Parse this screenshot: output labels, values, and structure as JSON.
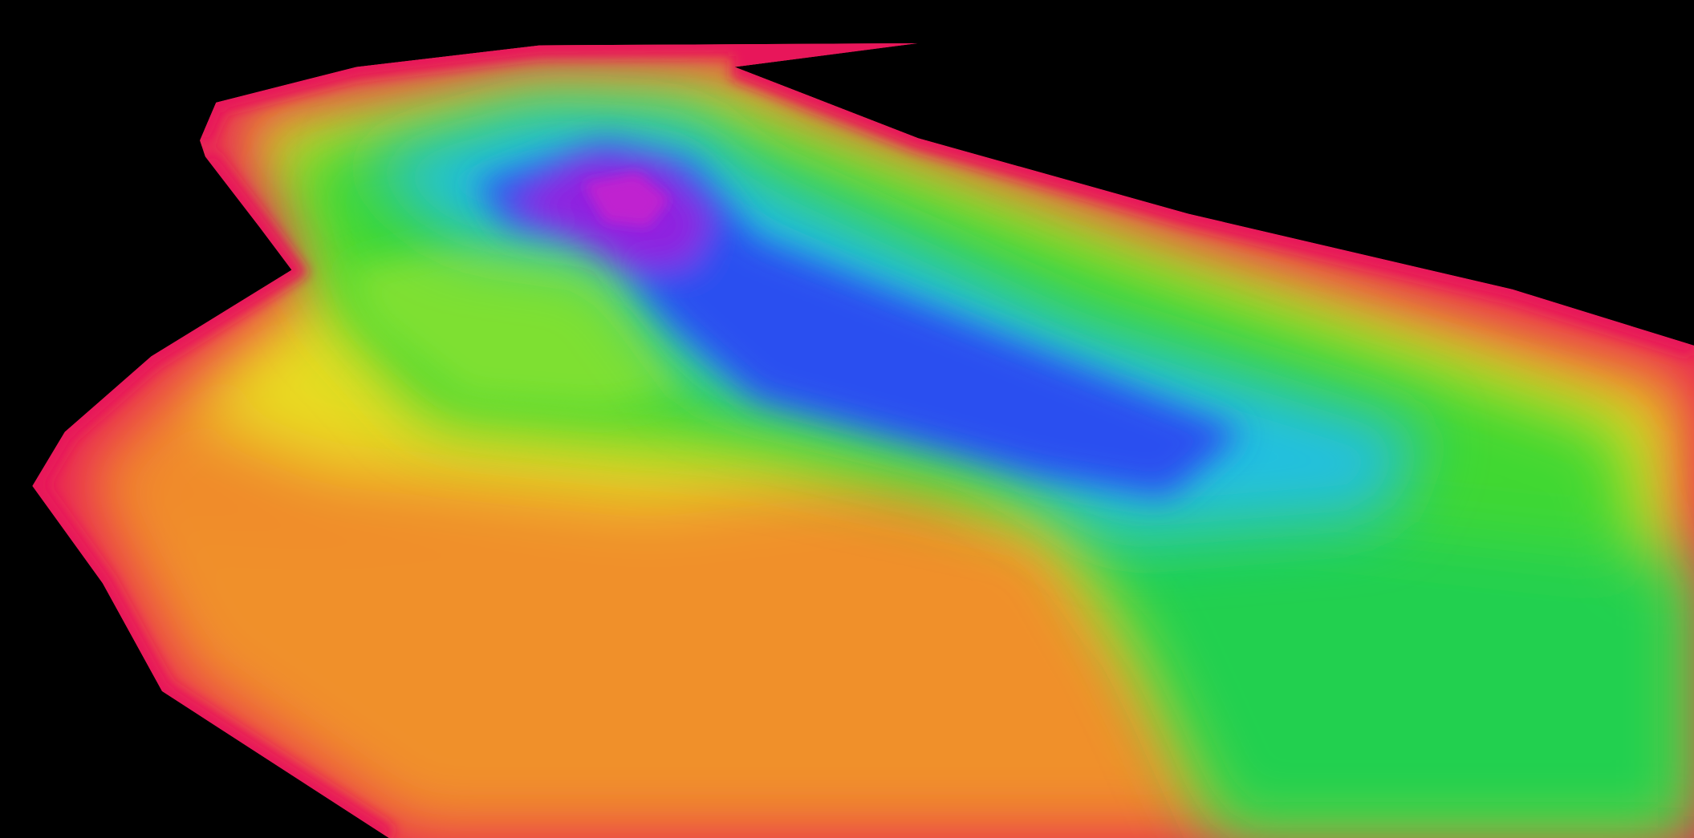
{
  "view": {
    "type": "3d-bathymetry-surface",
    "background": "#000000",
    "colormap": [
      "#e8185a",
      "#f02a2a",
      "#f07a20",
      "#f0b020",
      "#e8e020",
      "#90e020",
      "#20d040",
      "#20d0b0",
      "#20b0f0",
      "#2050f0",
      "#4020e0",
      "#a020e0"
    ]
  }
}
